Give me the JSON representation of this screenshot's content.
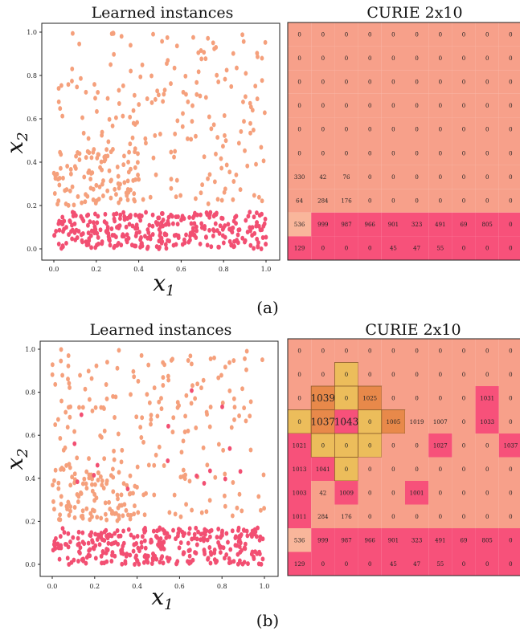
{
  "colors": {
    "orange": "#f5a07c",
    "red": "#f24f72",
    "grid_orange": "#f7a08a",
    "grid_peach": "#f9b69b",
    "grid_red": "#f7517a",
    "gold": "#ecbd5b",
    "dark_orange": "#e8894a"
  },
  "panels": [
    {
      "label": "(a)",
      "scatter": {
        "title": "Learned instances",
        "xlabel": "x1",
        "ylabel": "x2",
        "xlim": [
          0,
          1
        ],
        "ylim": [
          0,
          1
        ],
        "xticks": [
          "0.0",
          "0.2",
          "0.4",
          "0.6",
          "0.8",
          "1.0"
        ],
        "yticks": [
          "0.0",
          "0.2",
          "0.4",
          "0.6",
          "0.8",
          "1.0"
        ]
      },
      "grid": {
        "title": "CURIE 2x10",
        "rows": [
          [
            "0",
            "0",
            "0",
            "0",
            "0",
            "0",
            "0",
            "0",
            "0",
            "0"
          ],
          [
            "0",
            "0",
            "0",
            "0",
            "0",
            "0",
            "0",
            "0",
            "0",
            "0"
          ],
          [
            "0",
            "0",
            "0",
            "0",
            "0",
            "0",
            "0",
            "0",
            "0",
            "0"
          ],
          [
            "0",
            "0",
            "0",
            "0",
            "0",
            "0",
            "0",
            "0",
            "0",
            "0"
          ],
          [
            "0",
            "0",
            "0",
            "0",
            "0",
            "0",
            "0",
            "0",
            "0",
            "0"
          ],
          [
            "0",
            "0",
            "0",
            "0",
            "0",
            "0",
            "0",
            "0",
            "0",
            "0"
          ],
          [
            "330",
            "42",
            "76",
            "0",
            "0",
            "0",
            "0",
            "0",
            "0",
            "0"
          ],
          [
            "64",
            "284",
            "176",
            "0",
            "0",
            "0",
            "0",
            "0",
            "0",
            "0"
          ],
          [
            "536",
            "999",
            "987",
            "966",
            "901",
            "323",
            "491",
            "69",
            "805",
            "0"
          ],
          [
            "129",
            "0",
            "0",
            "0",
            "45",
            "47",
            "55",
            "0",
            "0",
            "0"
          ]
        ],
        "cell_colors": [
          [
            "O",
            "O",
            "O",
            "O",
            "O",
            "O",
            "O",
            "O",
            "O",
            "O"
          ],
          [
            "O",
            "O",
            "O",
            "O",
            "O",
            "O",
            "O",
            "O",
            "O",
            "O"
          ],
          [
            "O",
            "O",
            "O",
            "O",
            "O",
            "O",
            "O",
            "O",
            "O",
            "O"
          ],
          [
            "O",
            "O",
            "O",
            "O",
            "O",
            "O",
            "O",
            "O",
            "O",
            "O"
          ],
          [
            "O",
            "O",
            "O",
            "O",
            "O",
            "O",
            "O",
            "O",
            "O",
            "O"
          ],
          [
            "O",
            "O",
            "O",
            "O",
            "O",
            "O",
            "O",
            "O",
            "O",
            "O"
          ],
          [
            "O",
            "O",
            "O",
            "O",
            "O",
            "O",
            "O",
            "O",
            "O",
            "O"
          ],
          [
            "O",
            "O",
            "O",
            "O",
            "O",
            "O",
            "O",
            "O",
            "O",
            "O"
          ],
          [
            "P",
            "R",
            "R",
            "R",
            "R",
            "R",
            "R",
            "R",
            "R",
            "R"
          ],
          [
            "R",
            "R",
            "R",
            "R",
            "R",
            "R",
            "R",
            "R",
            "R",
            "R"
          ]
        ],
        "big_labels": []
      }
    },
    {
      "label": "(b)",
      "scatter": {
        "title": "Learned instances",
        "xlabel": "x1",
        "ylabel": "x2",
        "xlim": [
          0,
          1
        ],
        "ylim": [
          0,
          1
        ],
        "xticks": [
          "0.0",
          "0.2",
          "0.4",
          "0.6",
          "0.8",
          "1.0"
        ],
        "yticks": [
          "0.0",
          "0.2",
          "0.4",
          "0.6",
          "0.8",
          "1.0"
        ]
      },
      "grid": {
        "title": "CURIE 2x10",
        "rows": [
          [
            "0",
            "0",
            "0",
            "0",
            "0",
            "0",
            "0",
            "0",
            "0",
            "0"
          ],
          [
            "0",
            "0",
            "0",
            "0",
            "0",
            "0",
            "0",
            "0",
            "0",
            "0"
          ],
          [
            "0",
            "1039",
            "0",
            "1025",
            "0",
            "0",
            "0",
            "0",
            "1031",
            "0"
          ],
          [
            "0",
            "1037",
            "1043",
            "0",
            "1005",
            "1019",
            "1007",
            "0",
            "1033",
            "0"
          ],
          [
            "1021",
            "0",
            "0",
            "0",
            "0",
            "0",
            "1027",
            "0",
            "0",
            "1037"
          ],
          [
            "1013",
            "1041",
            "0",
            "0",
            "0",
            "0",
            "0",
            "0",
            "0",
            "0"
          ],
          [
            "1003",
            "42",
            "1009",
            "0",
            "0",
            "1001",
            "0",
            "0",
            "0",
            "0"
          ],
          [
            "1011",
            "284",
            "176",
            "0",
            "0",
            "0",
            "0",
            "0",
            "0",
            "0"
          ],
          [
            "536",
            "999",
            "987",
            "966",
            "901",
            "323",
            "491",
            "69",
            "805",
            "0"
          ],
          [
            "129",
            "0",
            "0",
            "0",
            "45",
            "47",
            "55",
            "0",
            "0",
            "0"
          ]
        ],
        "cell_colors": [
          [
            "O",
            "O",
            "O",
            "O",
            "O",
            "O",
            "O",
            "O",
            "O",
            "O"
          ],
          [
            "O",
            "O",
            "G",
            "O",
            "O",
            "O",
            "O",
            "O",
            "O",
            "O"
          ],
          [
            "O",
            "D",
            "G",
            "D",
            "O",
            "O",
            "O",
            "O",
            "R",
            "O"
          ],
          [
            "G",
            "D",
            "R",
            "G",
            "D",
            "O",
            "O",
            "O",
            "R",
            "O"
          ],
          [
            "R",
            "G",
            "G",
            "G",
            "O",
            "O",
            "R",
            "O",
            "O",
            "R"
          ],
          [
            "R",
            "R",
            "G",
            "O",
            "O",
            "O",
            "O",
            "O",
            "O",
            "O"
          ],
          [
            "R",
            "O",
            "R",
            "O",
            "O",
            "R",
            "O",
            "O",
            "O",
            "O"
          ],
          [
            "R",
            "O",
            "O",
            "O",
            "O",
            "O",
            "O",
            "O",
            "O",
            "O"
          ],
          [
            "P",
            "R",
            "R",
            "R",
            "R",
            "R",
            "R",
            "R",
            "R",
            "R"
          ],
          [
            "R",
            "R",
            "R",
            "R",
            "R",
            "R",
            "R",
            "R",
            "R",
            "R"
          ]
        ],
        "big_labels": [
          [
            2,
            1
          ],
          [
            3,
            1
          ],
          [
            3,
            2
          ]
        ]
      }
    }
  ]
}
